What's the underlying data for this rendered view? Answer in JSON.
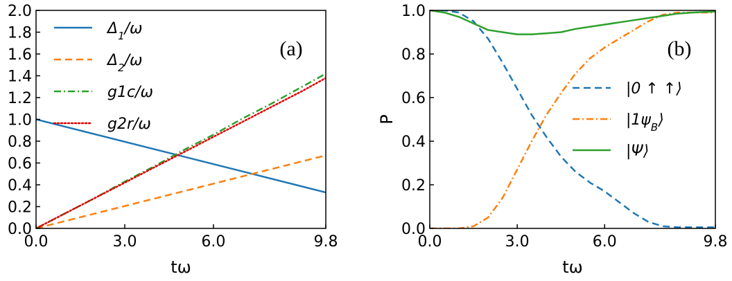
{
  "chart_data": [
    {
      "type": "line",
      "panel_label": "(a)",
      "xlabel": "tω",
      "ylabel": "",
      "xlim": [
        0,
        9.8
      ],
      "ylim": [
        0,
        2.0
      ],
      "xticks": [
        0.0,
        3.0,
        6.0,
        9.8
      ],
      "xtick_labels": [
        "0.0",
        "3.0",
        "6.0",
        "9.8"
      ],
      "yticks": [
        0.0,
        0.2,
        0.4,
        0.6,
        0.8,
        1.0,
        1.2,
        1.4,
        1.6,
        1.8,
        2.0
      ],
      "ytick_labels": [
        "0.0",
        "0.2",
        "0.4",
        "0.6",
        "0.8",
        "1.0",
        "1.2",
        "1.4",
        "1.6",
        "1.8",
        "2.0"
      ],
      "legend_position": "upper-left",
      "series": [
        {
          "name": "Δ1/ω",
          "label_main": "Δ",
          "label_sub": "1",
          "label_tail": "/ω",
          "color": "#1f77b4",
          "style": "solid",
          "x": [
            0,
            9.8
          ],
          "y": [
            1.0,
            0.33
          ]
        },
        {
          "name": "Δ2/ω",
          "label_main": "Δ",
          "label_sub": "2",
          "label_tail": "/ω",
          "color": "#ff7f0e",
          "style": "dashed",
          "x": [
            0,
            9.8
          ],
          "y": [
            0.0,
            0.67
          ]
        },
        {
          "name": "g1c/ω",
          "label_main": "g1c/ω",
          "label_sub": "",
          "label_tail": "",
          "color": "#2ca02c",
          "style": "dashdot",
          "x": [
            0,
            1,
            2,
            3,
            4,
            5,
            6,
            7,
            8,
            9,
            9.8
          ],
          "y": [
            0.0,
            0.14,
            0.28,
            0.43,
            0.57,
            0.72,
            0.86,
            1.01,
            1.15,
            1.3,
            1.42
          ]
        },
        {
          "name": "g2r/ω",
          "label_main": "g2r/ω",
          "label_sub": "",
          "label_tail": "",
          "color": "#e00000",
          "style": "dotted",
          "x": [
            0,
            1,
            2,
            3,
            4,
            5,
            6,
            7,
            8,
            9,
            9.8
          ],
          "y": [
            0.0,
            0.14,
            0.28,
            0.42,
            0.56,
            0.7,
            0.84,
            0.98,
            1.12,
            1.26,
            1.38
          ]
        }
      ]
    },
    {
      "type": "line",
      "panel_label": "(b)",
      "xlabel": "tω",
      "ylabel": "P",
      "xlim": [
        0,
        9.8
      ],
      "ylim": [
        0,
        1.0
      ],
      "xticks": [
        0.0,
        3.0,
        6.0,
        9.8
      ],
      "xtick_labels": [
        "0.0",
        "3.0",
        "6.0",
        "9.8"
      ],
      "yticks": [
        0.0,
        0.2,
        0.4,
        0.6,
        0.8,
        1.0
      ],
      "ytick_labels": [
        "0.0",
        "0.2",
        "0.4",
        "0.6",
        "0.8",
        "1.0"
      ],
      "legend_position": "center-right",
      "series": [
        {
          "name": "|0 ↑ ↑⟩",
          "label_main": "|0 ↑ ↑⟩",
          "label_sub": "",
          "label_tail": "",
          "color": "#1f77b4",
          "style": "dashed",
          "x": [
            0,
            0.5,
            1.0,
            1.5,
            2.0,
            2.5,
            3.0,
            3.5,
            4.0,
            4.5,
            5.0,
            5.5,
            6.0,
            6.5,
            7.0,
            7.5,
            8.0,
            8.5,
            9.0,
            9.8
          ],
          "y": [
            1.0,
            1.0,
            0.99,
            0.95,
            0.87,
            0.76,
            0.64,
            0.52,
            0.42,
            0.33,
            0.26,
            0.21,
            0.17,
            0.12,
            0.07,
            0.03,
            0.01,
            0.005,
            0.005,
            0.005
          ]
        },
        {
          "name": "|1ψB⟩",
          "label_main": "|1ψ",
          "label_sub": "B",
          "label_tail": "⟩",
          "color": "#ff7f0e",
          "style": "dashdot",
          "x": [
            0,
            0.5,
            1.0,
            1.5,
            2.0,
            2.5,
            3.0,
            3.5,
            4.0,
            4.5,
            5.0,
            5.5,
            6.0,
            6.5,
            7.0,
            7.5,
            8.0,
            8.5,
            9.0,
            9.8
          ],
          "y": [
            0.0,
            0.0,
            0.0,
            0.01,
            0.05,
            0.14,
            0.27,
            0.4,
            0.52,
            0.62,
            0.71,
            0.78,
            0.83,
            0.87,
            0.91,
            0.95,
            0.98,
            0.99,
            0.99,
            0.99
          ]
        },
        {
          "name": "|Ψ⟩",
          "label_main": "|Ψ⟩",
          "label_sub": "",
          "label_tail": "",
          "color": "#2ca02c",
          "style": "solid",
          "x": [
            0,
            0.5,
            1.0,
            1.5,
            2.0,
            2.5,
            3.0,
            3.5,
            4.0,
            4.5,
            5.0,
            5.5,
            6.0,
            6.5,
            7.0,
            7.5,
            8.0,
            8.5,
            9.0,
            9.8
          ],
          "y": [
            1.0,
            0.99,
            0.97,
            0.94,
            0.91,
            0.9,
            0.89,
            0.89,
            0.895,
            0.9,
            0.915,
            0.925,
            0.935,
            0.945,
            0.955,
            0.965,
            0.975,
            0.985,
            0.99,
            0.995
          ]
        }
      ]
    }
  ]
}
